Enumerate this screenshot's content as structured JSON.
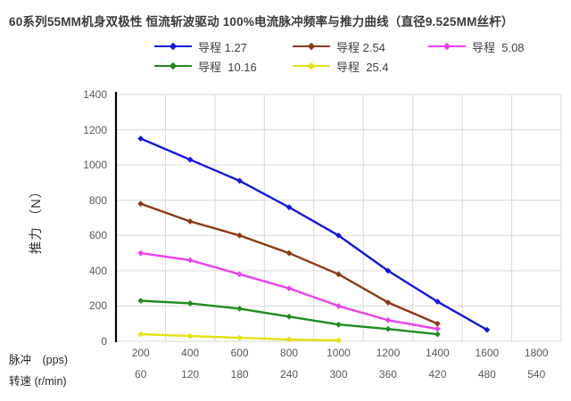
{
  "title": "60系列55MM机身双极性 恒流斩波驱动 100%电流脉冲频率与推力曲线（直径9.525MM丝杆）",
  "y_axis": {
    "title": "推力 （N）",
    "tick_min": 0,
    "tick_max": 1400,
    "tick_step": 200
  },
  "x_axis": {
    "row1_label": "脉冲　(pps)",
    "row2_label": "转速 (r/min)"
  },
  "chart_data": {
    "type": "line",
    "title": "60系列55MM机身双极性 恒流斩波驱动 100%电流脉冲频率与推力曲线（直径9.525MM丝杆）",
    "xlabel_row1": "脉冲 (pps)",
    "xlabel_row2": "转速 (r/min)",
    "ylabel": "推力（N）",
    "x_categories_pps": [
      200,
      400,
      600,
      800,
      1000,
      1200,
      1400,
      1600,
      1800
    ],
    "x_categories_rpm": [
      60,
      120,
      180,
      240,
      300,
      360,
      420,
      480,
      540
    ],
    "ylim": [
      0,
      1400
    ],
    "y_tick_step": 200,
    "grid": true,
    "legend_position": "top",
    "series": [
      {
        "name": "导程 1.27",
        "color": "#1414e0",
        "values": [
          1150,
          1030,
          910,
          760,
          600,
          400,
          225,
          65,
          null
        ]
      },
      {
        "name": "导程 2.54",
        "color": "#8c3a14",
        "values": [
          780,
          680,
          600,
          500,
          380,
          220,
          100,
          null,
          null
        ]
      },
      {
        "name": "导程  5.08",
        "color": "#ee3fee",
        "values": [
          500,
          460,
          380,
          300,
          200,
          120,
          70,
          null,
          null
        ]
      },
      {
        "name": "导程  10.16",
        "color": "#1e8c1e",
        "values": [
          230,
          215,
          185,
          140,
          95,
          70,
          40,
          null,
          null
        ]
      },
      {
        "name": "导程  25.4",
        "color": "#e6e112",
        "values": [
          40,
          30,
          20,
          10,
          5,
          null,
          null,
          null,
          null
        ]
      }
    ],
    "grid_color": "#d9d9d9",
    "axis_color": "#000000"
  }
}
